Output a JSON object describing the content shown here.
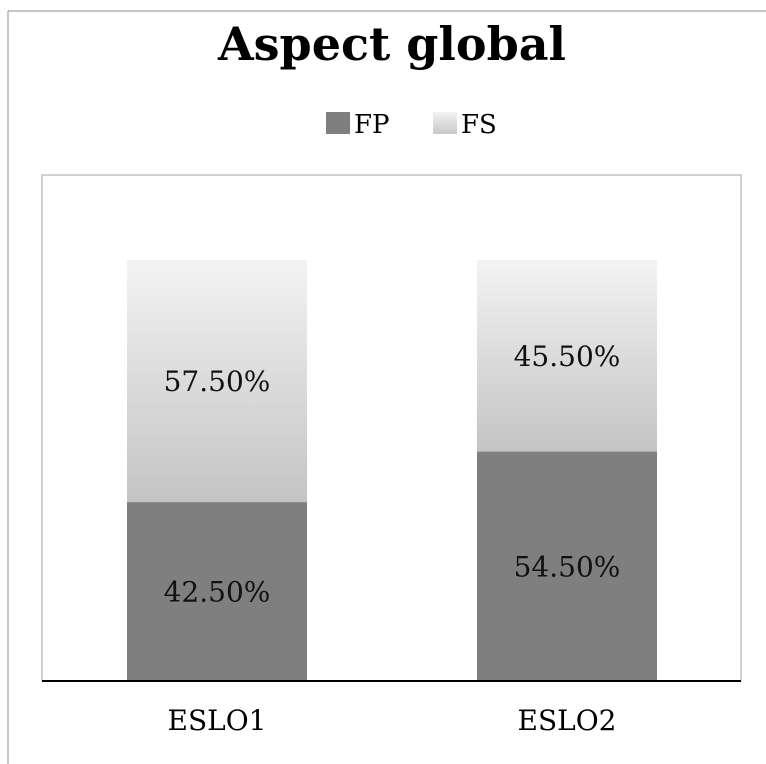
{
  "chart_data": {
    "type": "bar",
    "stacked": true,
    "title": "Aspect global",
    "categories": [
      "ESLO1",
      "ESLO2"
    ],
    "series": [
      {
        "name": "FP",
        "values": [
          42.5,
          54.5
        ],
        "labels": [
          "42.50%",
          "54.50%"
        ],
        "color": "#7f7f7f"
      },
      {
        "name": "FS",
        "values": [
          57.5,
          45.5
        ],
        "labels": [
          "57.50%",
          "45.50%"
        ],
        "color": "#e6e6e6"
      }
    ],
    "ylim": [
      0,
      100
    ],
    "y_unit": "%",
    "legend_position": "top",
    "grid": false
  }
}
